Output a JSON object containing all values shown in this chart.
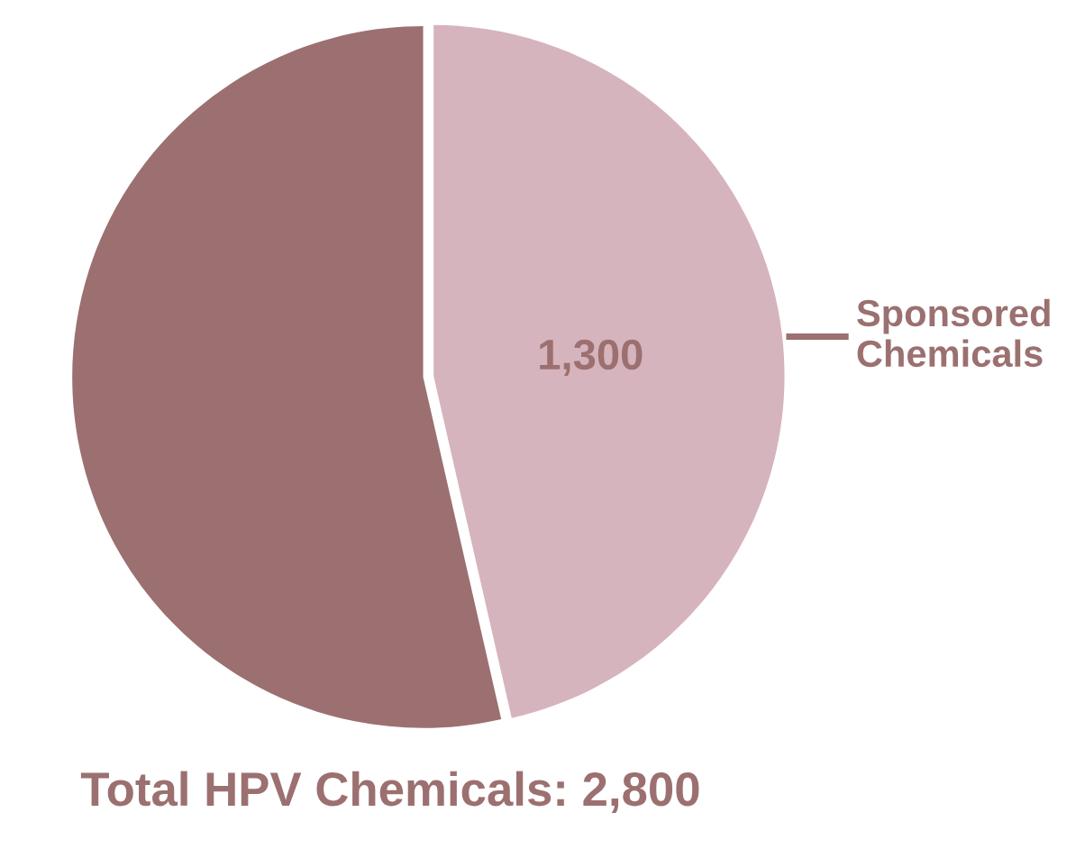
{
  "chart_data": {
    "type": "pie",
    "categories": [
      "Sponsored Chemicals",
      null
    ],
    "values": [
      1300,
      1500
    ],
    "value_labels": [
      "1,300",
      null
    ],
    "colors": [
      "#d6b4bd",
      "#9c7070"
    ],
    "annotations": [
      "Total HPV Chemicals: 2,800"
    ]
  }
}
